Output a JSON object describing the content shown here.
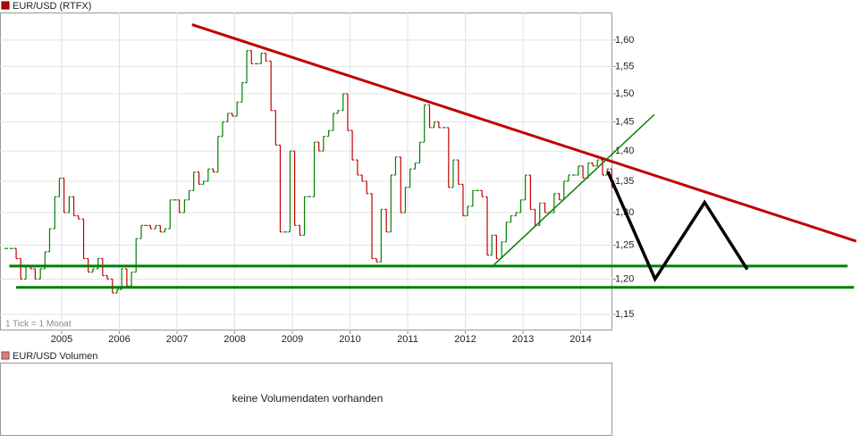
{
  "chart_data": {
    "type": "ohlc-line",
    "title": "EUR/USD (RTFX)",
    "note": "1 Tick = 1 Monat",
    "log_scale": true,
    "grid": true,
    "up_color": "#008000",
    "down_color": "#c00000",
    "xlim": [
      2003.93,
      2014.55
    ],
    "xticks": [
      2005,
      2006,
      2007,
      2008,
      2009,
      2010,
      2011,
      2012,
      2013,
      2014
    ],
    "ylim": [
      1.128,
      1.654
    ],
    "yticks": [
      {
        "value": 1.15,
        "label": "1,15"
      },
      {
        "value": 1.2,
        "label": "1,20"
      },
      {
        "value": 1.25,
        "label": "1,25"
      },
      {
        "value": 1.3,
        "label": "1,30"
      },
      {
        "value": 1.35,
        "label": "1,35"
      },
      {
        "value": 1.4,
        "label": "1,40"
      },
      {
        "value": 1.45,
        "label": "1,45"
      },
      {
        "value": 1.5,
        "label": "1,50"
      },
      {
        "value": 1.55,
        "label": "1,55"
      },
      {
        "value": 1.6,
        "label": "1,60"
      }
    ],
    "x": [
      2004.04,
      2004.13,
      2004.21,
      2004.29,
      2004.38,
      2004.46,
      2004.54,
      2004.63,
      2004.71,
      2004.79,
      2004.88,
      2004.96,
      2005.04,
      2005.13,
      2005.21,
      2005.29,
      2005.38,
      2005.46,
      2005.54,
      2005.63,
      2005.71,
      2005.79,
      2005.88,
      2005.96,
      2006.04,
      2006.13,
      2006.21,
      2006.29,
      2006.38,
      2006.46,
      2006.54,
      2006.63,
      2006.71,
      2006.79,
      2006.88,
      2006.96,
      2007.04,
      2007.13,
      2007.21,
      2007.29,
      2007.38,
      2007.46,
      2007.54,
      2007.63,
      2007.71,
      2007.79,
      2007.88,
      2007.96,
      2008.04,
      2008.13,
      2008.21,
      2008.29,
      2008.38,
      2008.46,
      2008.54,
      2008.63,
      2008.71,
      2008.79,
      2008.88,
      2008.96,
      2009.04,
      2009.13,
      2009.21,
      2009.29,
      2009.38,
      2009.46,
      2009.54,
      2009.63,
      2009.71,
      2009.79,
      2009.88,
      2009.96,
      2010.04,
      2010.13,
      2010.21,
      2010.29,
      2010.38,
      2010.46,
      2010.54,
      2010.63,
      2010.71,
      2010.79,
      2010.88,
      2010.96,
      2011.04,
      2011.13,
      2011.21,
      2011.29,
      2011.38,
      2011.46,
      2011.54,
      2011.63,
      2011.71,
      2011.79,
      2011.88,
      2011.96,
      2012.04,
      2012.13,
      2012.21,
      2012.29,
      2012.38,
      2012.46,
      2012.54,
      2012.63,
      2012.71,
      2012.79,
      2012.88,
      2012.96,
      2013.04,
      2013.13,
      2013.21,
      2013.29,
      2013.38,
      2013.46,
      2013.54,
      2013.63,
      2013.71,
      2013.79,
      2013.88,
      2013.96,
      2014.04,
      2014.13,
      2014.21,
      2014.29,
      2014.38,
      2014.46,
      2014.54
    ],
    "values": [
      1.245,
      1.245,
      1.23,
      1.2,
      1.22,
      1.215,
      1.2,
      1.215,
      1.24,
      1.275,
      1.325,
      1.355,
      1.3,
      1.325,
      1.295,
      1.29,
      1.23,
      1.21,
      1.215,
      1.23,
      1.205,
      1.2,
      1.18,
      1.185,
      1.215,
      1.19,
      1.21,
      1.26,
      1.28,
      1.28,
      1.275,
      1.28,
      1.27,
      1.275,
      1.32,
      1.32,
      1.3,
      1.32,
      1.335,
      1.365,
      1.345,
      1.35,
      1.37,
      1.365,
      1.425,
      1.45,
      1.465,
      1.46,
      1.485,
      1.52,
      1.58,
      1.555,
      1.555,
      1.575,
      1.56,
      1.47,
      1.41,
      1.27,
      1.27,
      1.4,
      1.28,
      1.265,
      1.325,
      1.325,
      1.415,
      1.4,
      1.425,
      1.435,
      1.465,
      1.47,
      1.5,
      1.435,
      1.385,
      1.36,
      1.35,
      1.33,
      1.23,
      1.225,
      1.305,
      1.27,
      1.36,
      1.39,
      1.3,
      1.34,
      1.37,
      1.38,
      1.415,
      1.48,
      1.44,
      1.45,
      1.44,
      1.44,
      1.34,
      1.385,
      1.345,
      1.295,
      1.31,
      1.335,
      1.335,
      1.325,
      1.235,
      1.265,
      1.23,
      1.255,
      1.285,
      1.295,
      1.3,
      1.32,
      1.36,
      1.305,
      1.28,
      1.315,
      1.3,
      1.3,
      1.33,
      1.32,
      1.35,
      1.36,
      1.36,
      1.375,
      1.355,
      1.38,
      1.375,
      1.385,
      1.36,
      1.37,
      1.34
    ],
    "trendlines": [
      {
        "color": "#c00000",
        "width": 3,
        "points": [
          [
            2007.26,
            1.63
          ],
          [
            2018.78,
            1.256
          ]
        ]
      },
      {
        "color": "#008000",
        "width": 3,
        "points": [
          [
            2004.09,
            1.219
          ],
          [
            2018.63,
            1.219
          ]
        ]
      },
      {
        "color": "#008000",
        "width": 3,
        "points": [
          [
            2004.21,
            1.188
          ],
          [
            2018.74,
            1.188
          ]
        ]
      },
      {
        "color": "#008000",
        "width": 1.5,
        "points": [
          [
            2012.5,
            1.221
          ],
          [
            2015.28,
            1.463
          ]
        ]
      },
      {
        "color": "#000000",
        "width": 3.5,
        "points": [
          [
            2014.47,
            1.366
          ],
          [
            2015.29,
            1.2
          ],
          [
            2016.15,
            1.316
          ],
          [
            2016.89,
            1.214
          ]
        ]
      }
    ],
    "volume_title": "EUR/USD Volumen",
    "volume_message": "keine Volumendaten vorhanden"
  }
}
